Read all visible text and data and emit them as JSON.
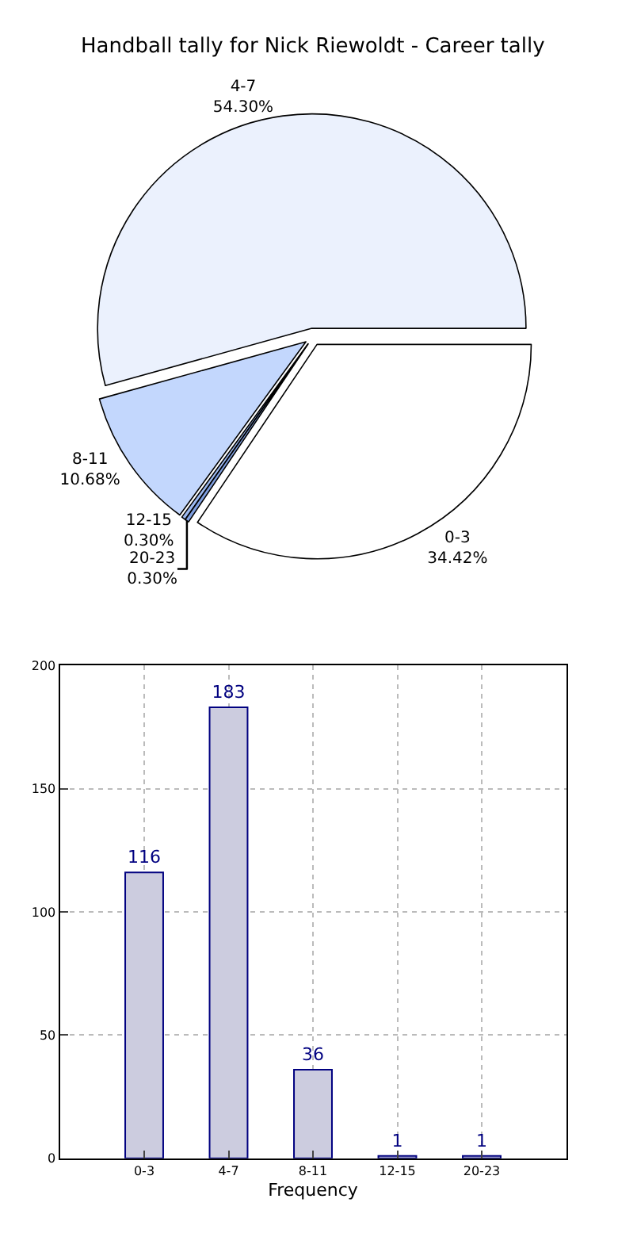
{
  "chart_data": [
    {
      "type": "pie",
      "title": "Handball tally for Nick Riewoldt - Career tally",
      "categories": [
        "0-3",
        "4-7",
        "8-11",
        "12-15",
        "20-23"
      ],
      "values": [
        34.42,
        54.3,
        10.68,
        0.3,
        0.3
      ],
      "value_labels": [
        "34.42%",
        "54.30%",
        "10.68%",
        "0.30%",
        "0.30%"
      ],
      "colors": [
        "#ffffff",
        "#ebf1fd",
        "#c3d7fd",
        "#9db9f0",
        "#7f9fe0"
      ],
      "legend": false
    },
    {
      "type": "bar",
      "xlabel": "Frequency",
      "categories": [
        "0-3",
        "4-7",
        "8-11",
        "12-15",
        "20-23"
      ],
      "values": [
        116,
        183,
        36,
        1,
        1
      ],
      "color": "#ccccdf",
      "ylim": [
        0,
        200
      ],
      "yticks": [
        0,
        50,
        100,
        150,
        200
      ],
      "grid": true,
      "data_labels": true,
      "legend": false
    }
  ]
}
